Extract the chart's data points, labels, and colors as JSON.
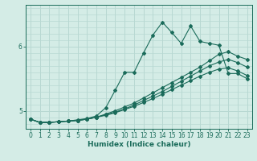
{
  "xlabel": "Humidex (Indice chaleur)",
  "ylabel": "",
  "background_color": "#d4ece6",
  "grid_color": "#b8d8d2",
  "line_color": "#1a6b5a",
  "xlim": [
    -0.5,
    23.5
  ],
  "ylim": [
    4.72,
    6.65
  ],
  "xticks": [
    0,
    1,
    2,
    3,
    4,
    5,
    6,
    7,
    8,
    9,
    10,
    11,
    12,
    13,
    14,
    15,
    16,
    17,
    18,
    19,
    20,
    21,
    22,
    23
  ],
  "yticks": [
    5,
    6
  ],
  "series": [
    {
      "x": [
        0,
        1,
        2,
        3,
        4,
        5,
        6,
        7,
        8,
        9,
        10,
        11,
        12,
        13,
        14,
        15,
        16,
        17,
        18,
        19,
        20,
        21,
        22,
        23
      ],
      "y": [
        4.87,
        4.82,
        4.82,
        4.83,
        4.84,
        4.86,
        4.88,
        4.92,
        5.05,
        5.32,
        5.6,
        5.6,
        5.9,
        6.18,
        6.38,
        6.22,
        6.05,
        6.32,
        6.08,
        6.05,
        6.02,
        5.58,
        5.58,
        5.5
      ]
    },
    {
      "x": [
        0,
        1,
        2,
        3,
        4,
        5,
        6,
        7,
        8,
        9,
        10,
        11,
        12,
        13,
        14,
        15,
        16,
        17,
        18,
        19,
        20,
        21,
        22,
        23
      ],
      "y": [
        4.87,
        4.82,
        4.82,
        4.83,
        4.84,
        4.85,
        4.87,
        4.9,
        4.95,
        5.0,
        5.06,
        5.12,
        5.2,
        5.28,
        5.36,
        5.44,
        5.52,
        5.6,
        5.68,
        5.78,
        5.88,
        5.92,
        5.85,
        5.8
      ]
    },
    {
      "x": [
        0,
        1,
        2,
        3,
        4,
        5,
        6,
        7,
        8,
        9,
        10,
        11,
        12,
        13,
        14,
        15,
        16,
        17,
        18,
        19,
        20,
        21,
        22,
        23
      ],
      "y": [
        4.87,
        4.82,
        4.82,
        4.83,
        4.84,
        4.85,
        4.87,
        4.9,
        4.94,
        4.98,
        5.03,
        5.09,
        5.16,
        5.23,
        5.3,
        5.38,
        5.46,
        5.54,
        5.62,
        5.7,
        5.76,
        5.8,
        5.75,
        5.68
      ]
    },
    {
      "x": [
        0,
        1,
        2,
        3,
        4,
        5,
        6,
        7,
        8,
        9,
        10,
        11,
        12,
        13,
        14,
        15,
        16,
        17,
        18,
        19,
        20,
        21,
        22,
        23
      ],
      "y": [
        4.87,
        4.82,
        4.82,
        4.83,
        4.84,
        4.85,
        4.87,
        4.9,
        4.93,
        4.97,
        5.02,
        5.07,
        5.13,
        5.19,
        5.26,
        5.33,
        5.4,
        5.47,
        5.54,
        5.6,
        5.65,
        5.67,
        5.62,
        5.55
      ]
    }
  ]
}
